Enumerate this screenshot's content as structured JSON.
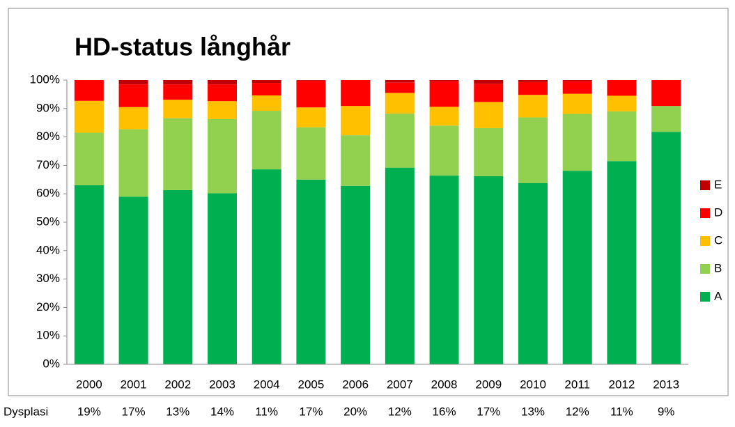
{
  "chart_data": {
    "type": "stacked_bar",
    "title": "HD-status långhår",
    "categories": [
      "2000",
      "2001",
      "2002",
      "2003",
      "2004",
      "2005",
      "2006",
      "2007",
      "2008",
      "2009",
      "2010",
      "2011",
      "2012",
      "2013"
    ],
    "series": [
      {
        "name": "A",
        "color": "#00b050",
        "values": [
          63,
          59,
          61.3,
          60.2,
          68.6,
          65,
          62.8,
          69.2,
          66.4,
          66.2,
          63.8,
          68.1,
          71.5,
          81.8
        ]
      },
      {
        "name": "B",
        "color": "#92d050",
        "values": [
          18.5,
          23.7,
          25.3,
          26.1,
          20.6,
          18.4,
          17.8,
          19,
          17.6,
          16.9,
          23.1,
          20,
          17.5,
          9.1
        ]
      },
      {
        "name": "C",
        "color": "#ffc000",
        "values": [
          11.2,
          7.8,
          6.5,
          6.3,
          5.4,
          7,
          10.3,
          7.3,
          6.6,
          9.2,
          7.9,
          7.1,
          5.5,
          0
        ]
      },
      {
        "name": "D",
        "color": "#ff0000",
        "values": [
          7.3,
          8,
          5.4,
          5.9,
          4.4,
          9.4,
          9.1,
          3.7,
          9,
          6.4,
          4.5,
          4.4,
          5.5,
          9.1
        ]
      },
      {
        "name": "E",
        "color": "#c00000",
        "values": [
          0,
          1.5,
          1.5,
          1.5,
          1,
          0.2,
          0,
          0.8,
          0.4,
          1.3,
          0.7,
          0.4,
          0,
          0
        ]
      }
    ],
    "ylim": [
      0,
      100
    ],
    "yticks": [
      {
        "value": 0,
        "label": "0%"
      },
      {
        "value": 10,
        "label": "10%"
      },
      {
        "value": 20,
        "label": "20%"
      },
      {
        "value": 30,
        "label": "30%"
      },
      {
        "value": 40,
        "label": "40%"
      },
      {
        "value": 50,
        "label": "50%"
      },
      {
        "value": 60,
        "label": "60%"
      },
      {
        "value": 70,
        "label": "70%"
      },
      {
        "value": 80,
        "label": "80%"
      },
      {
        "value": 90,
        "label": "90%"
      },
      {
        "value": 100,
        "label": "100%"
      }
    ],
    "grid": false,
    "legend": "right"
  },
  "dysplasi_row": {
    "label": "Dysplasi",
    "values": [
      "19%",
      "17%",
      "13%",
      "14%",
      "11%",
      "17%",
      "20%",
      "12%",
      "16%",
      "17%",
      "13%",
      "12%",
      "11%",
      "9%"
    ]
  }
}
